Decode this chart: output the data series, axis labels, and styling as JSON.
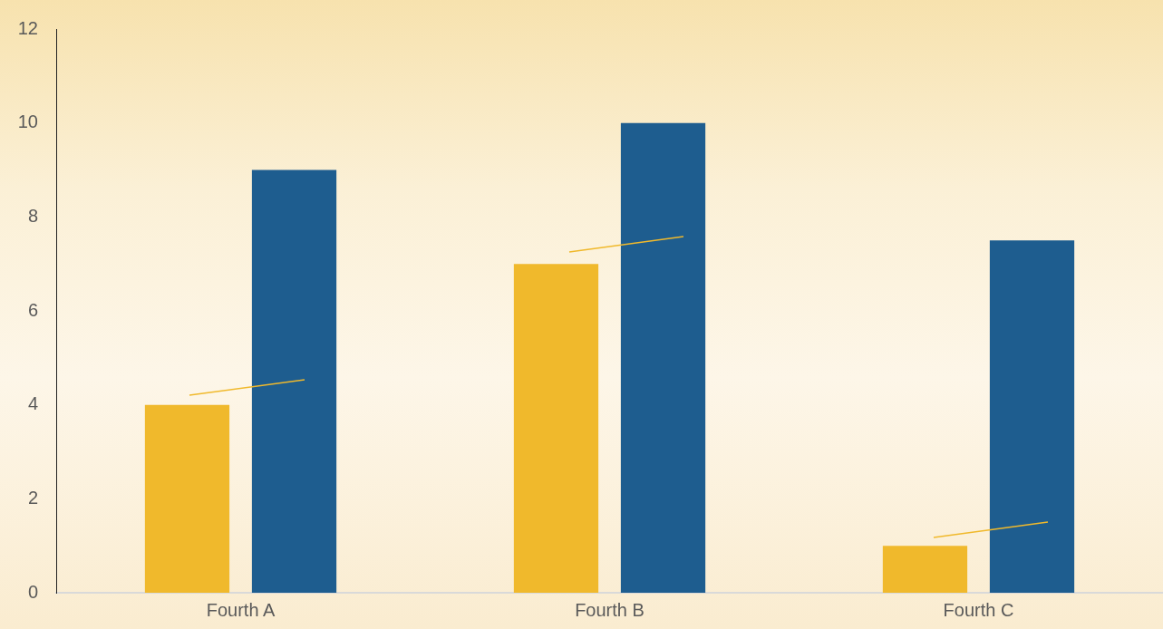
{
  "chart_data": {
    "type": "bar",
    "categories": [
      "Fourth A",
      "Fourth B",
      "Fourth C"
    ],
    "series": [
      {
        "color": "#f0b92c",
        "values": [
          4,
          7,
          1
        ]
      },
      {
        "color": "#1e5d8f",
        "values": [
          9,
          10,
          7.5
        ]
      }
    ],
    "ylim": [
      0,
      12
    ],
    "yticks": [
      0,
      2,
      4,
      6,
      8,
      10,
      12
    ],
    "grid": false,
    "legend": false
  }
}
